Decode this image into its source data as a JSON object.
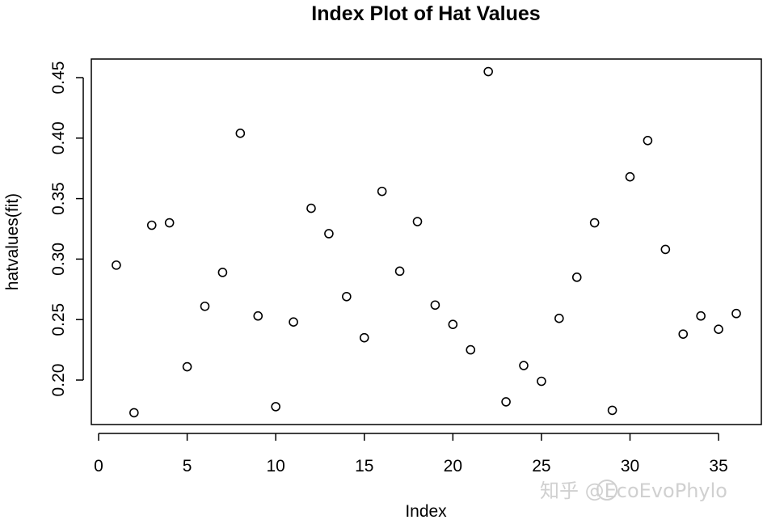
{
  "chart_data": {
    "type": "scatter",
    "title": "Index Plot of Hat Values",
    "xlabel": "Index",
    "ylabel": "hatvalues(fit)",
    "xlim": [
      0,
      36
    ],
    "ylim": [
      0.17,
      0.47
    ],
    "x_ticks": [
      0,
      5,
      10,
      15,
      20,
      25,
      30,
      35
    ],
    "y_ticks": [
      0.2,
      0.25,
      0.3,
      0.35,
      0.4,
      0.45
    ],
    "y_tick_labels": [
      "0.20",
      "0.25",
      "0.30",
      "0.35",
      "0.40",
      "0.45"
    ],
    "grid": false,
    "marker": "open-circle",
    "x": [
      1,
      2,
      3,
      4,
      5,
      6,
      7,
      8,
      9,
      10,
      11,
      12,
      13,
      14,
      15,
      16,
      17,
      18,
      19,
      20,
      21,
      22,
      23,
      24,
      25,
      26,
      27,
      28,
      29,
      30,
      31,
      32,
      33,
      34,
      35,
      36
    ],
    "y": [
      0.295,
      0.173,
      0.328,
      0.33,
      0.211,
      0.261,
      0.289,
      0.404,
      0.253,
      0.178,
      0.248,
      0.342,
      0.321,
      0.269,
      0.235,
      0.356,
      0.29,
      0.331,
      0.262,
      0.246,
      0.225,
      0.455,
      0.182,
      0.212,
      0.199,
      0.251,
      0.285,
      0.33,
      0.175,
      0.368,
      0.398,
      0.308,
      0.238,
      0.253,
      0.242,
      0.255
    ]
  },
  "watermark": {
    "text": "知乎 @EcoEvoPhylo",
    "icon": "zhihu-logo-icon",
    "color": "#d0d0d0"
  }
}
